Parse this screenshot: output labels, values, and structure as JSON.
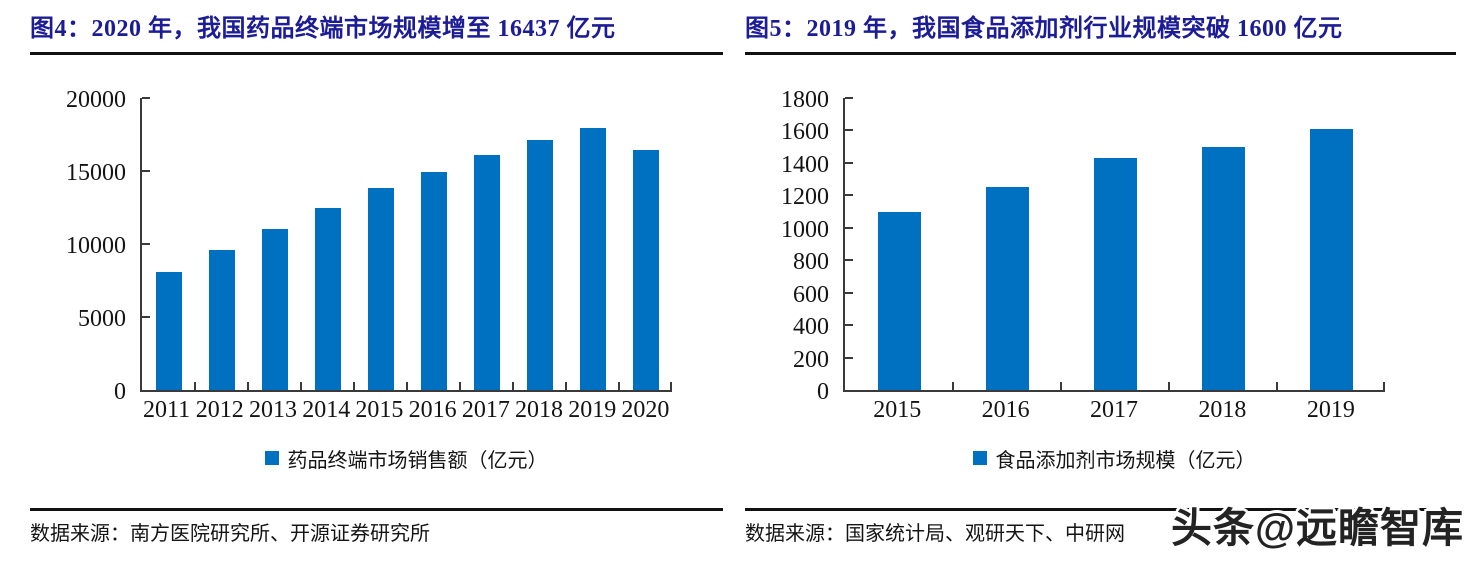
{
  "colors": {
    "bar_blue": "#0070C0",
    "title_navy": "#1c1c96",
    "axis_gray": "#3a3a3a",
    "rule_black": "#121212"
  },
  "watermark": {
    "text": "头条@远瞻智库"
  },
  "panels": [
    {
      "title": "图4：2020 年，我国药品终端市场规模增至 16437 亿元",
      "legend": "药品终端市场销售额（亿元）",
      "source": "数据来源：南方医院研究所、开源证券研究所"
    },
    {
      "title": "图5：2019 年，我国食品添加剂行业规模突破 1600 亿元",
      "legend": "食品添加剂市场规模（亿元）",
      "source": "数据来源：国家统计局、观研天下、中研网"
    }
  ],
  "chart_data": [
    {
      "type": "bar",
      "title": "图4：2020 年，我国药品终端市场规模增至 16437 亿元",
      "series_name": "药品终端市场销售额（亿元）",
      "categories": [
        "2011",
        "2012",
        "2013",
        "2014",
        "2015",
        "2016",
        "2017",
        "2018",
        "2019",
        "2020"
      ],
      "values": [
        8100,
        9560,
        11000,
        12450,
        13830,
        14950,
        16120,
        17130,
        17955,
        16437
      ],
      "xlabel": "",
      "ylabel": "",
      "ylim": [
        0,
        20000
      ],
      "yticks": [
        0,
        5000,
        10000,
        15000,
        20000
      ],
      "bar_color": "#0070C0",
      "grid": false,
      "legend_position": "bottom"
    },
    {
      "type": "bar",
      "title": "图5：2019 年，我国食品添加剂行业规模突破 1600 亿元",
      "series_name": "食品添加剂市场规模（亿元）",
      "categories": [
        "2015",
        "2016",
        "2017",
        "2018",
        "2019"
      ],
      "values": [
        1100,
        1250,
        1430,
        1500,
        1610
      ],
      "xlabel": "",
      "ylabel": "",
      "ylim": [
        0,
        1800
      ],
      "yticks": [
        0,
        200,
        400,
        600,
        800,
        1000,
        1200,
        1400,
        1600,
        1800
      ],
      "bar_color": "#0070C0",
      "grid": false,
      "legend_position": "bottom"
    }
  ]
}
